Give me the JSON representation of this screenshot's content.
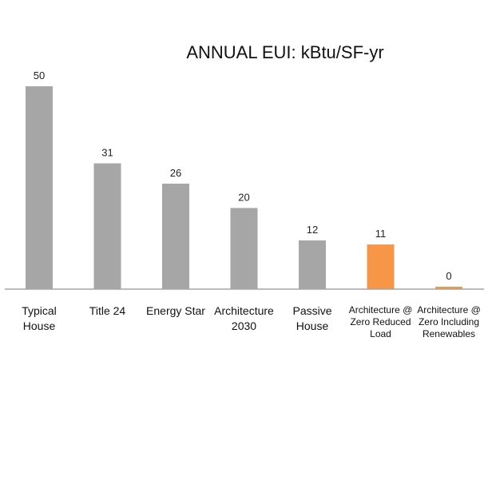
{
  "chart_data": {
    "type": "bar",
    "title": "ANNUAL EUI: kBtu/SF-yr",
    "xlabel": "",
    "ylabel": "",
    "ylim": [
      0,
      50
    ],
    "grid": false,
    "legend": "none",
    "categories": [
      [
        "Typical",
        "House"
      ],
      [
        "Title 24"
      ],
      [
        "Energy Star"
      ],
      [
        "Architecture",
        "2030"
      ],
      [
        "Passive",
        "House"
      ],
      [
        "Architecture @",
        "Zero Reduced",
        "Load"
      ],
      [
        "Architecture @",
        "Zero Including",
        "Renewables"
      ]
    ],
    "values": [
      50,
      31,
      26,
      20,
      12,
      11,
      0
    ],
    "value_labels": [
      "50",
      "31",
      "26",
      "20",
      "12",
      "11",
      "0"
    ],
    "colors": [
      "#a6a6a6",
      "#a6a6a6",
      "#a6a6a6",
      "#a6a6a6",
      "#a6a6a6",
      "#f79646",
      "#f79646"
    ],
    "axis_color": "#a6a6a6"
  }
}
